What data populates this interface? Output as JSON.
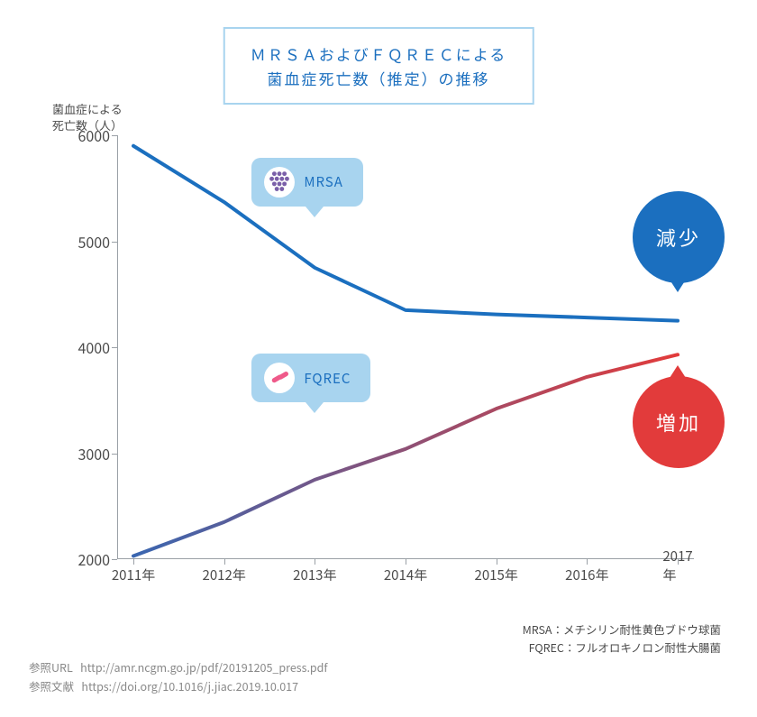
{
  "chart": {
    "type": "line",
    "title_line1": "ＭＲＳＡおよびＦＱＲＥＣによる",
    "title_line2": "菌血症死亡数（推定）の推移",
    "title_fontsize": 17,
    "title_color": "#1b6fbf",
    "title_border_color": "#a8d4ef",
    "title_bg": "#ffffff",
    "y_axis_label_line1": "菌血症による",
    "y_axis_label_line2": "死亡数（人）",
    "y_axis_label_color": "#4a4a4a",
    "ylim": [
      2000,
      6000
    ],
    "ytick_step": 1000,
    "y_ticks": [
      2000,
      3000,
      4000,
      5000,
      6000
    ],
    "x_categories": [
      "2011年",
      "2012年",
      "2013年",
      "2014年",
      "2015年",
      "2016年",
      "2017年"
    ],
    "axis_color": "#9aa0a6",
    "tick_font_color": "#4a4a4a",
    "tick_fontsize": 16,
    "background_color": "#ffffff",
    "series": [
      {
        "id": "mrsa",
        "label": "MRSA",
        "values": [
          5900,
          5370,
          4750,
          4350,
          4310,
          4280,
          4250
        ],
        "stroke": "#1b6fbf",
        "stroke_width": 4,
        "callout": {
          "label": "MRSA",
          "bg": "#a8d4ef",
          "text_color": "#1b6fbf",
          "icon": "grape-icon",
          "icon_color": "#7a5fa8",
          "x_anchor_index": 2,
          "y_value": 5500
        },
        "badge": {
          "text": "減少",
          "bg": "#1b6fbf",
          "x_anchor_index": 6,
          "y_value": 5050
        }
      },
      {
        "id": "fqrec",
        "label": "FQREC",
        "values": [
          2030,
          2350,
          2750,
          3040,
          3420,
          3720,
          3930
        ],
        "stroke_gradient": {
          "from": "#3a66b0",
          "to": "#e23b3b"
        },
        "stroke_width": 4,
        "callout": {
          "label": "FQREC",
          "bg": "#a8d4ef",
          "text_color": "#1b6fbf",
          "icon": "rod-icon",
          "icon_color": "#ef5a8a",
          "x_anchor_index": 2,
          "y_value": 3650
        },
        "badge": {
          "text": "増加",
          "bg": "#e23b3b",
          "x_anchor_index": 6,
          "y_value": 3300
        }
      }
    ],
    "legend_note_line1": "MRSA：メチシリン耐性黄色ブドウ球菌",
    "legend_note_line2": "FQREC：フルオロキノロン耐性大腸菌",
    "legend_note_color": "#4a4a4a"
  },
  "footer": {
    "ref_url_label": "参照URL",
    "ref_url": "http://amr.ncgm.go.jp/pdf/20191205_press.pdf",
    "ref_doc_label": "参照文献",
    "ref_doc": "https://doi.org/10.1016/j.jiac.2019.10.017",
    "color": "#888888"
  }
}
